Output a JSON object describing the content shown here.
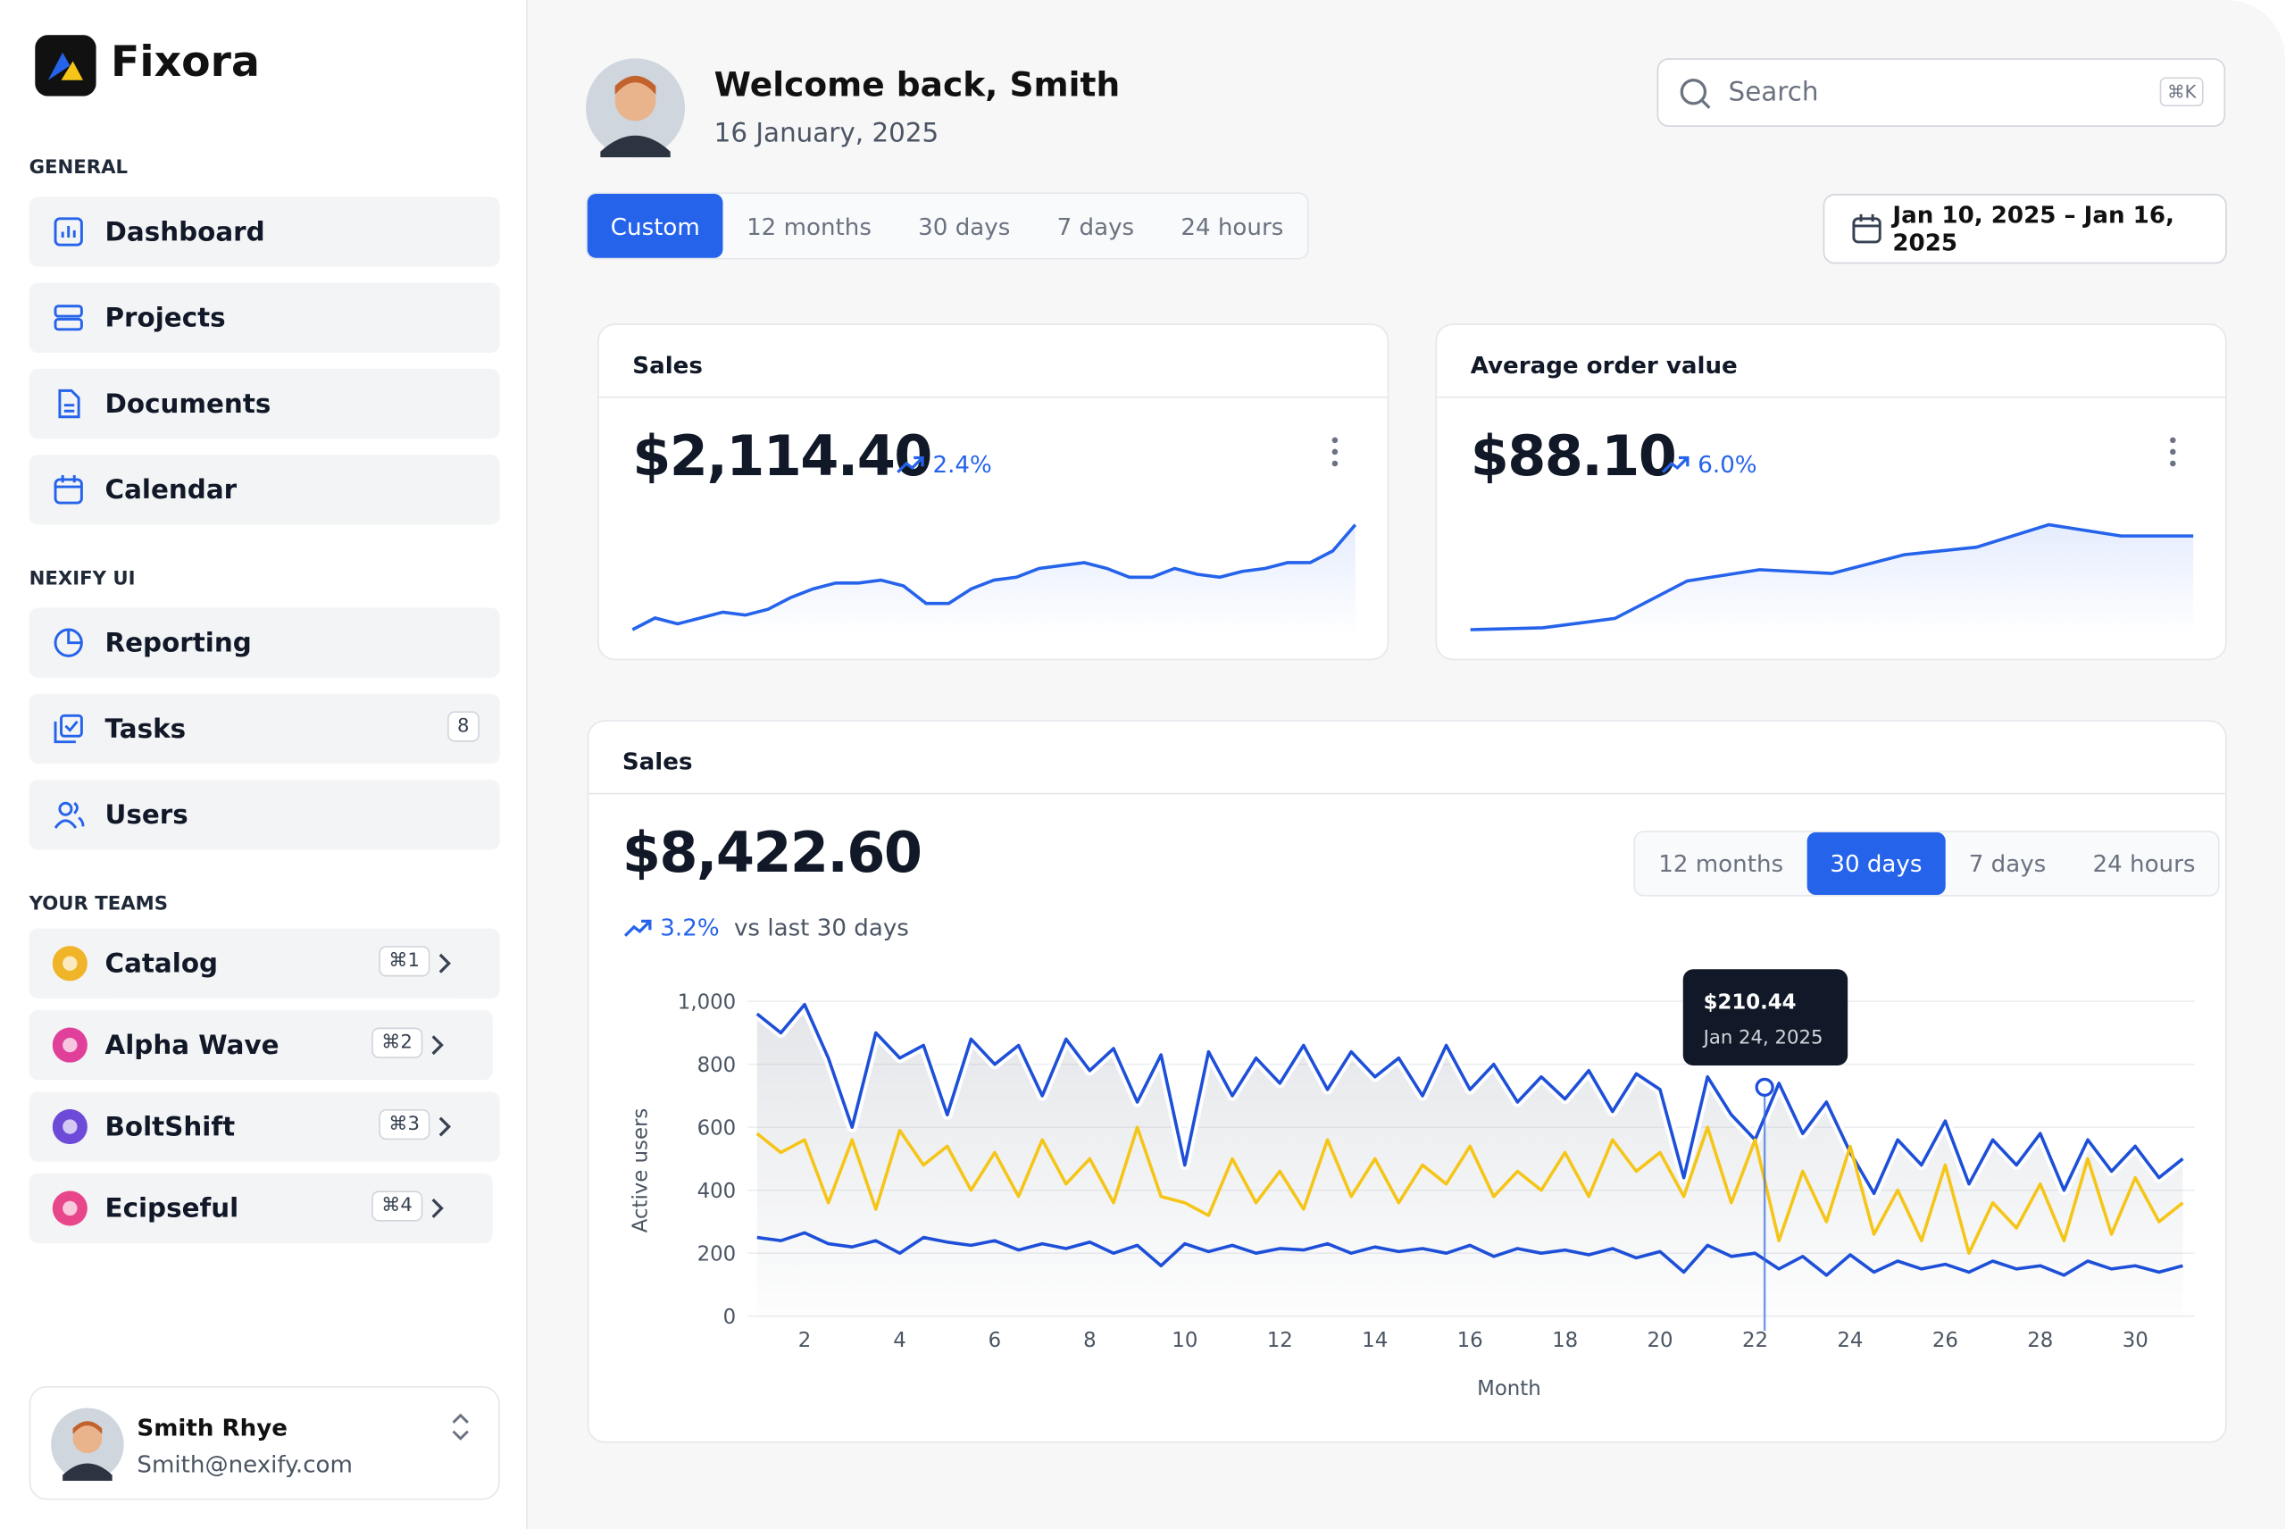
{
  "brand": "Fixora",
  "sidebar": {
    "sections": [
      {
        "title": "GENERAL",
        "items": [
          {
            "label": "Dashboard"
          },
          {
            "label": "Projects"
          },
          {
            "label": "Documents"
          },
          {
            "label": "Calendar"
          }
        ]
      },
      {
        "title": "NEXIFY UI",
        "items": [
          {
            "label": "Reporting"
          },
          {
            "label": "Tasks",
            "badge": 8
          },
          {
            "label": "Users"
          }
        ]
      }
    ],
    "teams_title": "YOUR TEAMS",
    "teams": [
      {
        "name": "Catalog",
        "shortcut": "⌘1",
        "color": "#f0b429"
      },
      {
        "name": "Alpha Wave",
        "shortcut": "⌘2",
        "color": "#e0409a"
      },
      {
        "name": "BoltShift",
        "shortcut": "⌘3",
        "color": "#6d4bd8"
      },
      {
        "name": "Ecipseful",
        "shortcut": "⌘4",
        "color": "#e8468a"
      }
    ]
  },
  "user": {
    "name": "Smith Rhye",
    "email": "Smith@nexify.com"
  },
  "header": {
    "welcome": "Welcome back, Smith",
    "date": "16 January, 2025",
    "search_placeholder": "Search",
    "search_shortcut": "⌘K"
  },
  "range_tabs": [
    "Custom",
    "12 months",
    "30 days",
    "7 days",
    "24 hours"
  ],
  "range_active": 0,
  "date_range": "Jan 10, 2025 – Jan 16, 2025",
  "cards": [
    {
      "title": "Sales",
      "value": "$2,114.40",
      "change": "2.4%",
      "color": "#2563eb",
      "spark": [
        10,
        14,
        12,
        14,
        16,
        15,
        17,
        21,
        24,
        26,
        26,
        27,
        25,
        19,
        19,
        24,
        27,
        28,
        31,
        32,
        33,
        31,
        28,
        28,
        31,
        29,
        28,
        30,
        31,
        33,
        33,
        37,
        46
      ]
    },
    {
      "title": "Average order value",
      "value": "$88.10",
      "change": "6.0%",
      "color": "#2563eb",
      "spark": [
        2,
        2.5,
        5,
        15,
        18,
        17,
        22,
        24,
        30,
        27,
        27
      ]
    }
  ],
  "chart_data": {
    "type": "line",
    "title": "Sales",
    "total": "$8,422.60",
    "change": "3.2%",
    "change_label": "vs last 30 days",
    "tabs": [
      "12 months",
      "30 days",
      "7 days",
      "24 hours"
    ],
    "active_tab": 1,
    "xlabel": "Month",
    "ylabel": "Active users",
    "xlim": [
      0.8,
      31.25
    ],
    "ylim": [
      0,
      1000
    ],
    "xticks": [
      2,
      4,
      6,
      8,
      10,
      12,
      14,
      16,
      18,
      20,
      22,
      24,
      26,
      28,
      30
    ],
    "yticks": [
      0,
      200,
      400,
      600,
      800,
      {
        "value": 1000,
        "label": "1,000"
      }
    ],
    "grid": true,
    "x": [
      1,
      1.5,
      2,
      2.5,
      3,
      3.5,
      4,
      4.5,
      5,
      5.5,
      6,
      6.5,
      7,
      7.5,
      8,
      8.5,
      9,
      9.5,
      10,
      10.5,
      11,
      11.5,
      12,
      12.5,
      13,
      13.5,
      14,
      14.5,
      15,
      15.5,
      16,
      16.5,
      17,
      17.5,
      18,
      18.5,
      19,
      19.5,
      20,
      20.5,
      21,
      21.5,
      22,
      22.5,
      23,
      23.5,
      24,
      24.5,
      25,
      25.5,
      26,
      26.5,
      27,
      27.5,
      28,
      28.5,
      29,
      29.5,
      30,
      30.5,
      31
    ],
    "series": [
      {
        "color": "#1d4fd8",
        "area": true,
        "values": [
          960,
          900,
          990,
          820,
          600,
          900,
          820,
          860,
          640,
          880,
          800,
          860,
          700,
          880,
          780,
          850,
          680,
          830,
          480,
          840,
          700,
          820,
          740,
          860,
          720,
          840,
          760,
          820,
          700,
          860,
          720,
          800,
          680,
          760,
          690,
          780,
          650,
          770,
          720,
          440,
          760,
          640,
          560,
          740,
          580,
          680,
          520,
          390,
          560,
          480,
          620,
          420,
          560,
          480,
          580,
          400,
          560,
          460,
          540,
          440,
          500
        ]
      },
      {
        "color": "#f5c518",
        "values": [
          580,
          520,
          560,
          360,
          560,
          340,
          590,
          480,
          540,
          400,
          520,
          380,
          560,
          420,
          500,
          360,
          600,
          380,
          360,
          320,
          500,
          360,
          460,
          340,
          560,
          380,
          500,
          360,
          480,
          420,
          540,
          380,
          460,
          400,
          520,
          380,
          560,
          460,
          520,
          380,
          600,
          360,
          560,
          240,
          460,
          300,
          540,
          260,
          400,
          240,
          480,
          200,
          360,
          280,
          420,
          240,
          500,
          260,
          440,
          300,
          360
        ]
      },
      {
        "color": "#1d4fd8",
        "values": [
          250,
          240,
          265,
          230,
          220,
          240,
          200,
          250,
          235,
          225,
          240,
          210,
          230,
          215,
          235,
          200,
          225,
          160,
          230,
          205,
          225,
          200,
          215,
          210,
          230,
          200,
          220,
          205,
          215,
          200,
          225,
          190,
          215,
          200,
          210,
          195,
          215,
          185,
          205,
          140,
          225,
          190,
          200,
          150,
          190,
          130,
          195,
          140,
          175,
          150,
          165,
          140,
          175,
          150,
          160,
          130,
          175,
          150,
          160,
          140,
          160
        ]
      }
    ],
    "tooltip": {
      "x": 22.2,
      "y": 727,
      "value": "$210.44",
      "date": "Jan 24, 2025"
    }
  }
}
